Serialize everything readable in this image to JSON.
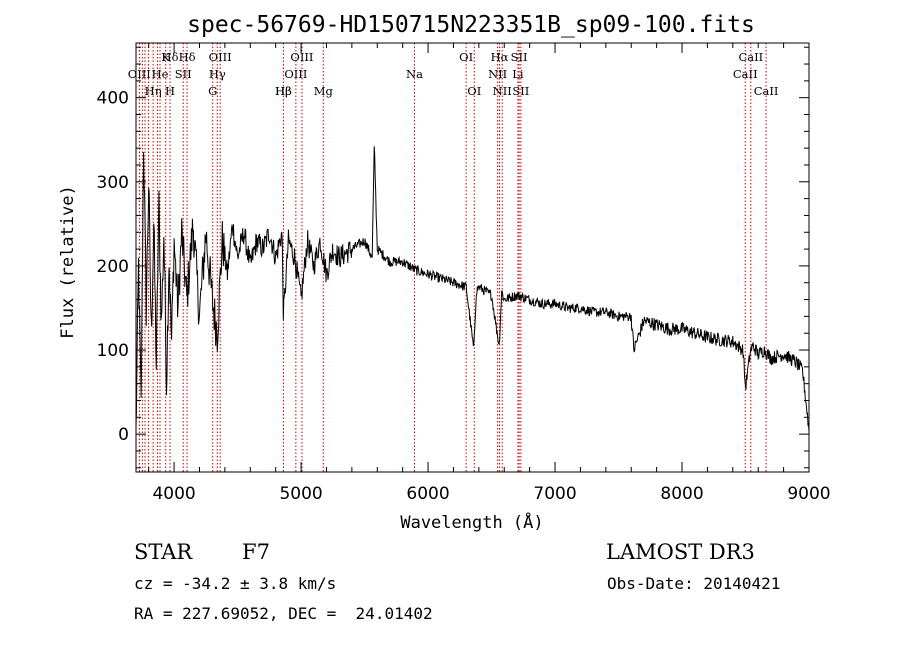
{
  "chart_data": {
    "type": "line",
    "title": "spec-56769-HD150715N223351B_sp09-100.fits",
    "xlabel": "Wavelength (Å)",
    "ylabel": "Flux (relative)",
    "xlim": [
      3700,
      9000
    ],
    "ylim": [
      -45,
      465
    ],
    "xticks": [
      4000,
      5000,
      6000,
      7000,
      8000,
      9000
    ],
    "yticks": [
      0,
      100,
      200,
      300,
      400
    ],
    "series": [
      {
        "name": "flux",
        "x": [
          3700,
          3720,
          3740,
          3760,
          3780,
          3800,
          3820,
          3840,
          3860,
          3880,
          3900,
          3920,
          3940,
          3960,
          3980,
          4000,
          4030,
          4060,
          4100,
          4150,
          4200,
          4250,
          4300,
          4340,
          4380,
          4420,
          4460,
          4500,
          4550,
          4600,
          4650,
          4700,
          4750,
          4800,
          4850,
          4861,
          4900,
          4950,
          5000,
          5050,
          5100,
          5150,
          5200,
          5250,
          5300,
          5400,
          5500,
          5560,
          5577,
          5600,
          5700,
          5800,
          5900,
          6000,
          6100,
          6200,
          6300,
          6360,
          6380,
          6400,
          6500,
          6560,
          6580,
          6600,
          6700,
          6800,
          6900,
          7000,
          7100,
          7200,
          7300,
          7400,
          7500,
          7600,
          7620,
          7700,
          7800,
          7900,
          8000,
          8100,
          8200,
          8300,
          8400,
          8480,
          8500,
          8540,
          8560,
          8600,
          8650,
          8700,
          8800,
          8900,
          8950,
          9000
        ],
        "y": [
          0,
          200,
          30,
          350,
          150,
          300,
          120,
          250,
          80,
          270,
          130,
          240,
          60,
          210,
          110,
          230,
          150,
          240,
          160,
          250,
          140,
          240,
          160,
          120,
          230,
          190,
          250,
          210,
          240,
          200,
          230,
          220,
          240,
          210,
          240,
          140,
          230,
          210,
          160,
          230,
          200,
          230,
          190,
          220,
          210,
          220,
          230,
          210,
          345,
          220,
          205,
          205,
          195,
          190,
          185,
          180,
          175,
          100,
          170,
          175,
          165,
          105,
          170,
          160,
          165,
          160,
          155,
          155,
          150,
          150,
          145,
          145,
          140,
          140,
          100,
          135,
          130,
          125,
          125,
          120,
          115,
          112,
          110,
          100,
          55,
          100,
          105,
          95,
          100,
          90,
          95,
          85,
          75,
          5
        ]
      }
    ],
    "spectral_lines": [
      {
        "label": "Hβ",
        "wl": 4861,
        "row": 3
      },
      {
        "label": "OIII",
        "wl": 3726,
        "row": 2
      },
      {
        "label": "Hη",
        "wl": 3835,
        "row": 3
      },
      {
        "label": "Hδ",
        "wl": 3968,
        "row": 1
      },
      {
        "label": "K",
        "wl": 3934,
        "row": 1
      },
      {
        "label": "He",
        "wl": 3889,
        "row": 2
      },
      {
        "label": "SII",
        "wl": 4072,
        "row": 2
      },
      {
        "label": "H",
        "wl": 3968,
        "row": 3
      },
      {
        "label": "Hδ",
        "wl": 4102,
        "row": 1
      },
      {
        "label": "OIII",
        "wl": 4363,
        "row": 1
      },
      {
        "label": "Hγ",
        "wl": 4340,
        "row": 2
      },
      {
        "label": "G",
        "wl": 4304,
        "row": 3
      },
      {
        "label": "Hβ",
        "wl": 4861,
        "row": 3
      },
      {
        "label": "OIII",
        "wl": 5007,
        "row": 1
      },
      {
        "label": "OIII",
        "wl": 4959,
        "row": 2
      },
      {
        "label": "Mg",
        "wl": 5175,
        "row": 3
      },
      {
        "label": "Na",
        "wl": 5893,
        "row": 2
      },
      {
        "label": "OI",
        "wl": 6300,
        "row": 1
      },
      {
        "label": "OI",
        "wl": 6364,
        "row": 3
      },
      {
        "label": "Hα",
        "wl": 6563,
        "row": 1
      },
      {
        "label": "SII",
        "wl": 6717,
        "row": 1
      },
      {
        "label": "NII",
        "wl": 6548,
        "row": 2
      },
      {
        "label": "Li",
        "wl": 6708,
        "row": 2
      },
      {
        "label": "NII",
        "wl": 6584,
        "row": 3
      },
      {
        "label": "SII",
        "wl": 6731,
        "row": 3
      },
      {
        "label": "CaII",
        "wl": 8542,
        "row": 1
      },
      {
        "label": "CaII",
        "wl": 8498,
        "row": 2
      },
      {
        "label": "CaII",
        "wl": 8662,
        "row": 3
      }
    ],
    "line_markers_wl": [
      3727,
      3750,
      3771,
      3798,
      3835,
      3869,
      3889,
      3934,
      3968,
      4072,
      4102,
      4304,
      4340,
      4363,
      4861,
      4959,
      5007,
      5175,
      5893,
      6300,
      6364,
      6548,
      6563,
      6584,
      6708,
      6717,
      6731,
      8498,
      8542,
      8662
    ],
    "marker_color": "#cc0000"
  },
  "info": {
    "class": "STAR",
    "subclass": "F7",
    "survey": "LAMOST DR3",
    "cz": "cz = -34.2 ± 3.8 km/s",
    "obs_date": "Obs-Date: 20140421",
    "coords": "RA = 227.69052, DEC =  24.01402"
  }
}
